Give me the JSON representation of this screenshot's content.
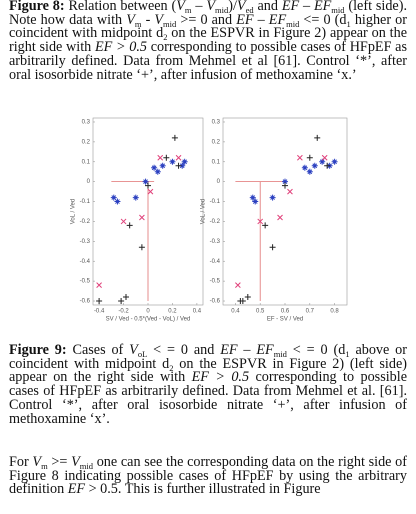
{
  "text_blocks": [
    [
      {
        "b": "Figure 8:"
      },
      " Relation between (",
      {
        "i": "V"
      },
      {
        "sub": "m"
      },
      " – ",
      {
        "i": "V"
      },
      {
        "sub": "mid"
      },
      ")/",
      {
        "i": "V"
      },
      {
        "sub": "ed"
      },
      " and ",
      {
        "i": "EF – EF"
      },
      {
        "sub": "mid"
      },
      " (left side). Note how data with ",
      {
        "i": "V"
      },
      {
        "sub": "m"
      },
      " - ",
      {
        "i": "V"
      },
      {
        "sub": "mid"
      },
      " >= 0 and ",
      {
        "i": "EF – EF"
      },
      {
        "sub": "mid"
      },
      " <= 0 (d",
      {
        "sub": "1"
      },
      " higher or coincident with midpoint d",
      {
        "sub": "2"
      },
      " on the ESPVR in Figure 2) appear on the right side with ",
      {
        "i": "EF > 0.5"
      },
      " corresponding to possible cases of HFpEF as arbitrarily defined. Data from Mehmel et al [61]. Control ‘*’, after oral isosorbide nitrate ‘+’, after infusion of methoxamine ‘x.’"
    ],
    [
      {
        "b": "Figure 9:"
      },
      " Cases of ",
      {
        "i": "V"
      },
      {
        "sub": "oL"
      },
      " < = 0 and ",
      {
        "i": "EF – EF"
      },
      {
        "sub": "mid"
      },
      " < = 0 (d",
      {
        "sub": "1"
      },
      " above or coincident with midpoint d",
      {
        "sub": "2"
      },
      " on the ESPVR in Figure 2) (left side) appear on the right side with ",
      {
        "i": "EF > 0.5"
      },
      " corresponding to possible cases of HFpEF as arbitrarily defined. Data from Mehmel et al. [61]. Control ‘*’, after oral isosorbide nitrate ‘+’, after infusion of methoxamine ‘x’."
    ],
    [
      "For ",
      {
        "i": "V"
      },
      {
        "sub": "m"
      },
      " >= ",
      {
        "i": "V"
      },
      {
        "sub": "mid"
      },
      " one can see the corresponding data on the right side of Figure 8 indicating possible cases of HFpEF by using the arbitrary definition ",
      {
        "i": "EF"
      },
      " > 0.5. This is further illustrated in Figure"
    ]
  ],
  "chart_data": [
    {
      "type": "scatter",
      "xlabel": "SV / Ved - 0.5*(Ved - VoL) / Ved",
      "ylabel": "VoL / Ved",
      "xlim": [
        -0.45,
        0.45
      ],
      "ylim": [
        -0.62,
        0.32
      ],
      "xticks": [
        -0.4,
        -0.2,
        0,
        0.2,
        0.4
      ],
      "yticks": [
        0.3,
        0.2,
        0.1,
        0,
        -0.1,
        -0.2,
        -0.3,
        -0.4,
        -0.5,
        -0.6
      ],
      "series": [
        {
          "marker": "star",
          "color": "#2a3fc0",
          "x": [
            -0.28,
            -0.25,
            -0.02,
            0.05,
            0.08,
            0.12,
            0.2,
            0.28,
            0.3,
            -0.1
          ],
          "values": [
            -0.08,
            -0.1,
            0.0,
            0.07,
            0.05,
            0.08,
            0.1,
            0.08,
            0.1,
            -0.08
          ]
        },
        {
          "marker": "plus",
          "color": "#222222",
          "x": [
            -0.15,
            -0.05,
            -0.18,
            -0.22,
            0.22,
            0.0,
            0.15,
            0.25,
            -0.4
          ],
          "values": [
            -0.22,
            -0.33,
            -0.58,
            -0.6,
            0.22,
            -0.02,
            0.12,
            0.08,
            -0.6
          ]
        },
        {
          "marker": "cross",
          "color": "#e0407a",
          "x": [
            -0.4,
            -0.2,
            0.02,
            0.1,
            0.25,
            -0.05
          ],
          "values": [
            -0.52,
            -0.2,
            -0.05,
            0.12,
            0.12,
            -0.18
          ]
        }
      ],
      "reference_lines": {
        "color": "#e07070",
        "lines": [
          {
            "x": [
              -0.3,
              0.05
            ],
            "y": [
              0,
              0
            ]
          },
          {
            "x": [
              0,
              0
            ],
            "y": [
              0,
              -0.6
            ]
          }
        ]
      }
    },
    {
      "type": "scatter",
      "xlabel": "EF - SV / Ved",
      "ylabel": "VoL / Ved",
      "xlim": [
        0.35,
        0.85
      ],
      "ylim": [
        -0.62,
        0.32
      ],
      "xticks": [
        0.4,
        0.5,
        0.6,
        0.7,
        0.8
      ],
      "yticks": [
        0.3,
        0.2,
        0.1,
        0,
        -0.1,
        -0.2,
        -0.3,
        -0.4,
        -0.5,
        -0.6
      ],
      "series": [
        {
          "marker": "star",
          "color": "#2a3fc0",
          "x": [
            0.47,
            0.48,
            0.6,
            0.68,
            0.7,
            0.72,
            0.75,
            0.78,
            0.8,
            0.55
          ],
          "values": [
            -0.08,
            -0.1,
            0.0,
            0.07,
            0.05,
            0.08,
            0.1,
            0.08,
            0.1,
            -0.08
          ]
        },
        {
          "marker": "plus",
          "color": "#222222",
          "x": [
            0.52,
            0.55,
            0.45,
            0.43,
            0.73,
            0.6,
            0.7,
            0.77,
            0.42
          ],
          "values": [
            -0.22,
            -0.33,
            -0.58,
            -0.6,
            0.22,
            -0.02,
            0.12,
            0.08,
            -0.6
          ]
        },
        {
          "marker": "cross",
          "color": "#e0407a",
          "x": [
            0.41,
            0.5,
            0.62,
            0.66,
            0.76,
            0.58
          ],
          "values": [
            -0.52,
            -0.2,
            -0.05,
            0.12,
            0.12,
            -0.18
          ]
        }
      ],
      "reference_lines": {
        "color": "#e07070",
        "lines": [
          {
            "x": [
              0.4,
              0.6
            ],
            "y": [
              0,
              0
            ]
          },
          {
            "x": [
              0.5,
              0.5
            ],
            "y": [
              0,
              -0.6
            ]
          }
        ]
      }
    }
  ]
}
